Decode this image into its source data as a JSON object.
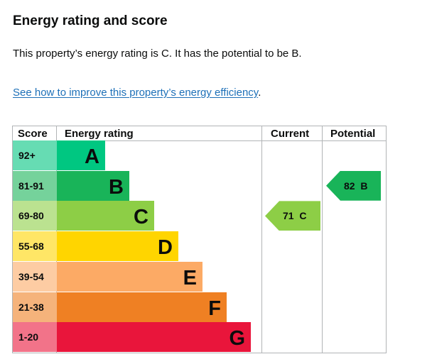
{
  "heading": "Energy rating and score",
  "summary": "This property’s energy rating is C. It has the potential to be B.",
  "improve_link": "See how to improve this property’s energy efficiency",
  "improve_link_end": ".",
  "table": {
    "score_header": "Score",
    "rating_header": "Energy rating",
    "current_header": "Current",
    "potential_header": "Potential"
  },
  "bands": [
    {
      "score": "92+",
      "letter": "A",
      "color": "#00c781",
      "score_bg": "#66dcb3",
      "fill": 0.25
    },
    {
      "score": "81-91",
      "letter": "B",
      "color": "#19b459",
      "score_bg": "#75d29b",
      "fill": 0.375
    },
    {
      "score": "69-80",
      "letter": "C",
      "color": "#8dce46",
      "score_bg": "#bbe290",
      "fill": 0.5
    },
    {
      "score": "55-68",
      "letter": "D",
      "color": "#ffd500",
      "score_bg": "#ffe666",
      "fill": 0.625
    },
    {
      "score": "39-54",
      "letter": "E",
      "color": "#fcaa65",
      "score_bg": "#fdcca3",
      "fill": 0.75
    },
    {
      "score": "21-38",
      "letter": "F",
      "color": "#ef8023",
      "score_bg": "#f5b37b",
      "fill": 0.875
    },
    {
      "score": "1-20",
      "letter": "G",
      "color": "#e9153b",
      "score_bg": "#f27389",
      "fill": 1.0
    }
  ],
  "current": {
    "score": "71",
    "letter": "C",
    "color": "#8dce46"
  },
  "potential": {
    "score": "82",
    "letter": "B",
    "color": "#19b459"
  }
}
